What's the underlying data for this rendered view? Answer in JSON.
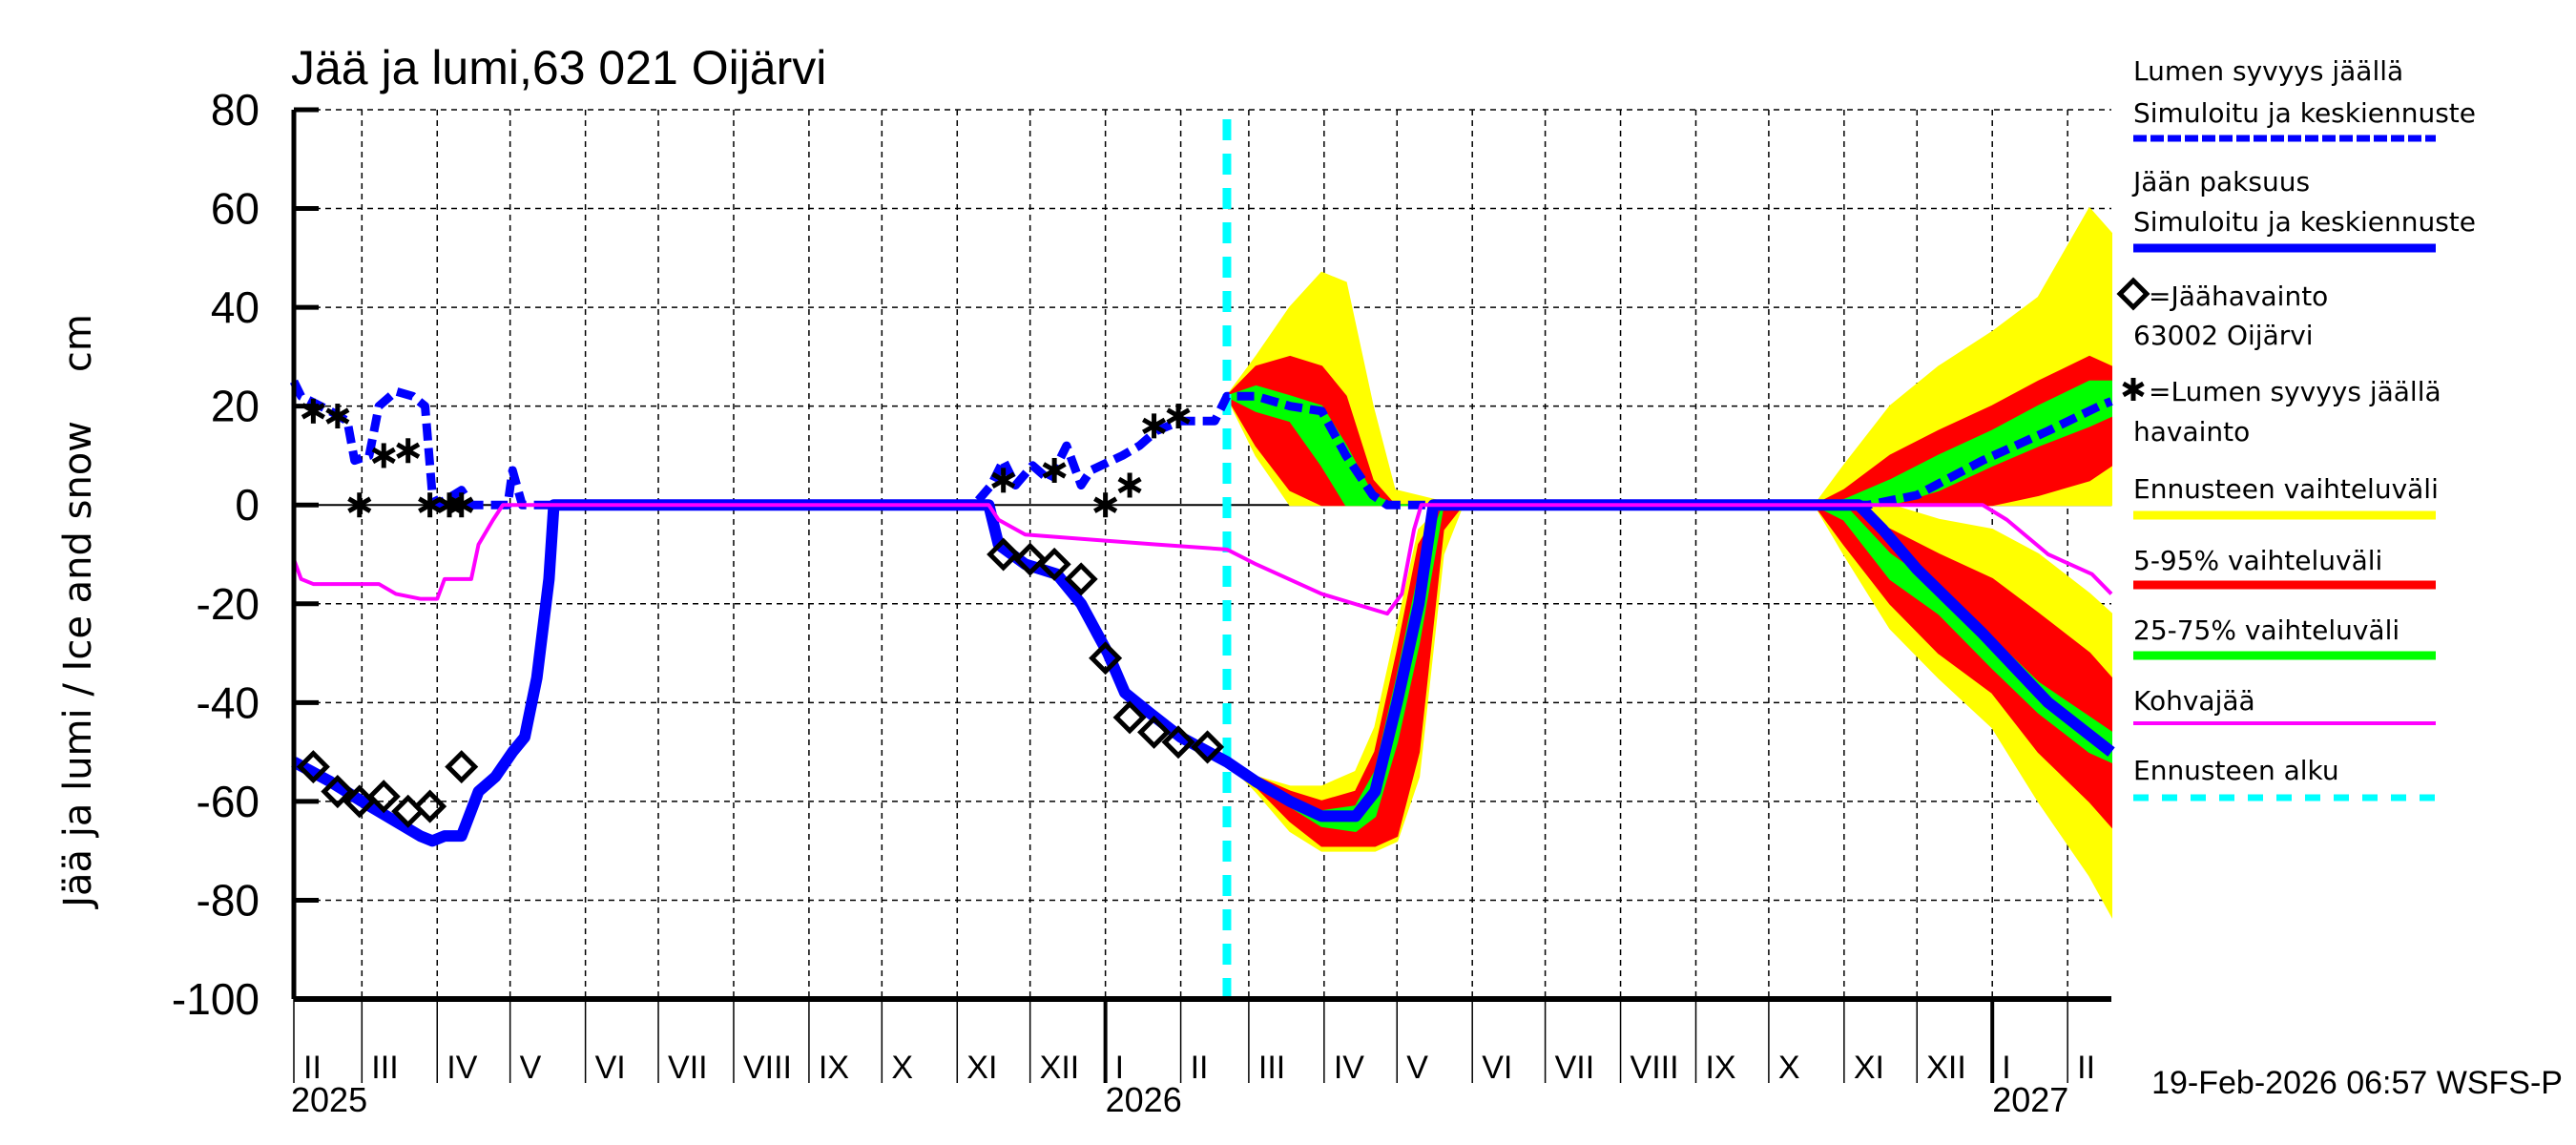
{
  "chart_data": {
    "type": "line",
    "title": "Jää ja lumi,63 021 Oijärvi",
    "ylabel": "Jää ja lumi / Ice and snow    cm",
    "xlabel": "",
    "ylim": [
      -100,
      80
    ],
    "yticks": [
      80,
      60,
      40,
      20,
      0,
      -20,
      -40,
      -60,
      -80,
      -100
    ],
    "xlim": [
      "2025-02-01",
      "2027-02-19"
    ],
    "grid": true,
    "legend_placement": "right",
    "month_ticks": [
      "2025-02-01",
      "2025-03-01",
      "2025-04-01",
      "2025-05-01",
      "2025-06-01",
      "2025-07-01",
      "2025-08-01",
      "2025-09-01",
      "2025-10-01",
      "2025-11-01",
      "2025-12-01",
      "2026-01-01",
      "2026-02-01",
      "2026-03-01",
      "2026-04-01",
      "2026-05-01",
      "2026-06-01",
      "2026-07-01",
      "2026-08-01",
      "2026-09-01",
      "2026-10-01",
      "2026-11-01",
      "2026-12-01",
      "2027-01-01",
      "2027-02-01"
    ],
    "month_labels": [
      "II",
      "III",
      "IV",
      "V",
      "VI",
      "VII",
      "VIII",
      "IX",
      "X",
      "XI",
      "XII",
      "I",
      "II",
      "III",
      "IV",
      "V",
      "VI",
      "VII",
      "VIII",
      "IX",
      "X",
      "XI",
      "XII",
      "I",
      "II"
    ],
    "year_labels": [
      {
        "date": "2025-02-01",
        "label": "2025"
      },
      {
        "date": "2026-01-01",
        "label": "2026"
      },
      {
        "date": "2027-01-01",
        "label": "2027"
      }
    ],
    "forecast_start": "2026-02-20",
    "colors": {
      "snow": "#0000ff",
      "ice": "#0000ff",
      "full_range": "#ffff00",
      "p5_95": "#ff0000",
      "p25_75": "#00ff00",
      "kohvajaa": "#ff00ff",
      "forecast_start": "#00ffff"
    },
    "series": [
      {
        "key": "snow_sim",
        "name": "Lumen syvyys jäällä Simuloitu ja keskiennuste",
        "style": "dashed",
        "points": [
          [
            "2025-02-01",
            25
          ],
          [
            "2025-02-04",
            22
          ],
          [
            "2025-02-16",
            19
          ],
          [
            "2025-02-23",
            17
          ],
          [
            "2025-02-26",
            9
          ],
          [
            "2025-03-04",
            10
          ],
          [
            "2025-03-08",
            20
          ],
          [
            "2025-03-15",
            23
          ],
          [
            "2025-03-22",
            22
          ],
          [
            "2025-03-27",
            20
          ],
          [
            "2025-03-30",
            2
          ],
          [
            "2025-04-01",
            0
          ],
          [
            "2025-04-11",
            3
          ],
          [
            "2025-04-15",
            0
          ],
          [
            "2025-04-30",
            0
          ],
          [
            "2025-05-02",
            7
          ],
          [
            "2025-05-06",
            0
          ],
          [
            "2025-11-08",
            0
          ],
          [
            "2025-11-15",
            4
          ],
          [
            "2025-11-20",
            9
          ],
          [
            "2025-11-25",
            4
          ],
          [
            "2025-12-02",
            8
          ],
          [
            "2025-12-09",
            5
          ],
          [
            "2025-12-16",
            12
          ],
          [
            "2025-12-22",
            4
          ],
          [
            "2025-12-26",
            7
          ],
          [
            "2026-01-08",
            10
          ],
          [
            "2026-01-15",
            12
          ],
          [
            "2026-01-22",
            15
          ],
          [
            "2026-02-01",
            17
          ],
          [
            "2026-02-15",
            17
          ],
          [
            "2026-02-20",
            22
          ],
          [
            "2026-03-04",
            22
          ],
          [
            "2026-03-18",
            20
          ],
          [
            "2026-03-31",
            19
          ],
          [
            "2026-04-10",
            10
          ],
          [
            "2026-04-21",
            2
          ],
          [
            "2026-04-27",
            0
          ],
          [
            "2026-11-11",
            0
          ],
          [
            "2026-12-01",
            2
          ],
          [
            "2026-12-28",
            9
          ],
          [
            "2027-01-24",
            15
          ],
          [
            "2027-02-14",
            20
          ],
          [
            "2027-02-19",
            21
          ]
        ]
      },
      {
        "key": "ice_sim",
        "name": "Jään paksuus Simuloitu ja keskiennuste",
        "style": "solid",
        "points": [
          [
            "2025-02-01",
            -52
          ],
          [
            "2025-02-16",
            -56
          ],
          [
            "2025-03-01",
            -60
          ],
          [
            "2025-03-25",
            -67
          ],
          [
            "2025-03-30",
            -68
          ],
          [
            "2025-04-04",
            -67
          ],
          [
            "2025-04-11",
            -67
          ],
          [
            "2025-04-18",
            -58
          ],
          [
            "2025-04-25",
            -55
          ],
          [
            "2025-05-02",
            -50
          ],
          [
            "2025-05-07",
            -47
          ],
          [
            "2025-05-12",
            -35
          ],
          [
            "2025-05-17",
            -15
          ],
          [
            "2025-05-19",
            0
          ],
          [
            "2025-11-14",
            0
          ],
          [
            "2025-11-18",
            -8
          ],
          [
            "2025-11-29",
            -12
          ],
          [
            "2025-12-12",
            -14
          ],
          [
            "2025-12-22",
            -20
          ],
          [
            "2026-01-02",
            -30
          ],
          [
            "2026-01-09",
            -38
          ],
          [
            "2026-01-19",
            -42
          ],
          [
            "2026-02-01",
            -47
          ],
          [
            "2026-02-20",
            -52
          ],
          [
            "2026-03-04",
            -56
          ],
          [
            "2026-03-18",
            -60
          ],
          [
            "2026-03-31",
            -63
          ],
          [
            "2026-04-14",
            -63
          ],
          [
            "2026-04-22",
            -58
          ],
          [
            "2026-05-01",
            -40
          ],
          [
            "2026-05-10",
            -20
          ],
          [
            "2026-05-16",
            0
          ],
          [
            "2026-11-07",
            0
          ],
          [
            "2026-11-17",
            -5
          ],
          [
            "2026-12-01",
            -13
          ],
          [
            "2026-12-28",
            -26
          ],
          [
            "2027-01-24",
            -40
          ],
          [
            "2027-02-19",
            -50
          ]
        ]
      },
      {
        "key": "kohva",
        "name": "Kohvajää",
        "style": "thin",
        "points": [
          [
            "2025-02-01",
            -11
          ],
          [
            "2025-02-04",
            -15
          ],
          [
            "2025-02-09",
            -16
          ],
          [
            "2025-03-08",
            -16
          ],
          [
            "2025-03-15",
            -18
          ],
          [
            "2025-03-25",
            -19
          ],
          [
            "2025-04-01",
            -19
          ],
          [
            "2025-04-04",
            -15
          ],
          [
            "2025-04-15",
            -15
          ],
          [
            "2025-04-18",
            -8
          ],
          [
            "2025-04-24",
            -3
          ],
          [
            "2025-04-28",
            0
          ],
          [
            "2025-11-14",
            0
          ],
          [
            "2025-11-18",
            -3
          ],
          [
            "2025-11-29",
            -6
          ],
          [
            "2025-12-26",
            -7
          ],
          [
            "2026-01-22",
            -8
          ],
          [
            "2026-02-20",
            -9
          ],
          [
            "2026-03-04",
            -12
          ],
          [
            "2026-03-31",
            -18
          ],
          [
            "2026-04-27",
            -22
          ],
          [
            "2026-05-03",
            -18
          ],
          [
            "2026-05-08",
            -5
          ],
          [
            "2026-05-11",
            0
          ],
          [
            "2026-12-28",
            0
          ],
          [
            "2027-01-07",
            -3
          ],
          [
            "2027-01-24",
            -10
          ],
          [
            "2027-02-11",
            -14
          ],
          [
            "2027-02-19",
            -18
          ]
        ]
      }
    ],
    "bands": [
      {
        "group": "snow_spring",
        "dates": [
          "2026-02-20",
          "2026-03-04",
          "2026-03-18",
          "2026-03-31",
          "2026-04-10",
          "2026-04-21",
          "2026-04-30",
          "2026-05-25"
        ],
        "full": {
          "lo": [
            22,
            10,
            0,
            0,
            0,
            0,
            0,
            0
          ],
          "hi": [
            22,
            30,
            40,
            47,
            45,
            20,
            3,
            0
          ]
        },
        "p5_95": {
          "lo": [
            22,
            12,
            3,
            0,
            0,
            0,
            0,
            0
          ],
          "hi": [
            22,
            28,
            30,
            28,
            22,
            5,
            0,
            0
          ]
        },
        "p25_75": {
          "lo": [
            22,
            19,
            17,
            8,
            0,
            0,
            0,
            0
          ],
          "hi": [
            22,
            24,
            22,
            20,
            12,
            2,
            0,
            0
          ]
        }
      },
      {
        "group": "ice_spring",
        "dates": [
          "2026-02-20",
          "2026-03-04",
          "2026-03-18",
          "2026-03-31",
          "2026-04-14",
          "2026-04-22",
          "2026-05-01",
          "2026-05-10",
          "2026-05-20",
          "2026-05-28"
        ],
        "full": {
          "lo": [
            -52,
            -58,
            -66,
            -70,
            -70,
            -70,
            -68,
            -55,
            -10,
            0
          ],
          "hi": [
            -52,
            -55,
            -57,
            -57,
            -54,
            -45,
            -25,
            -5,
            0,
            0
          ]
        },
        "p5_95": {
          "lo": [
            -52,
            -57,
            -64,
            -69,
            -69,
            -69,
            -67,
            -50,
            -5,
            0
          ],
          "hi": [
            -52,
            -55,
            -58,
            -60,
            -58,
            -50,
            -30,
            -8,
            0,
            0
          ]
        },
        "p25_75": {
          "lo": [
            -52,
            -56,
            -61,
            -65,
            -66,
            -63,
            -48,
            -28,
            0,
            0
          ],
          "hi": [
            -52,
            -55,
            -59,
            -62,
            -61,
            -54,
            -35,
            -14,
            0,
            0
          ]
        }
      },
      {
        "group": "snow_autumn",
        "dates": [
          "2026-10-20",
          "2026-11-01",
          "2026-11-20",
          "2026-12-10",
          "2027-01-01",
          "2027-01-20",
          "2027-02-10",
          "2027-02-19"
        ],
        "full": {
          "lo": [
            0,
            0,
            0,
            0,
            0,
            0,
            0,
            0
          ],
          "hi": [
            0,
            8,
            20,
            28,
            35,
            42,
            60,
            55
          ]
        },
        "p5_95": {
          "lo": [
            0,
            0,
            0,
            0,
            0,
            2,
            5,
            8
          ],
          "hi": [
            0,
            3,
            10,
            15,
            20,
            25,
            30,
            28
          ]
        },
        "p25_75": {
          "lo": [
            0,
            0,
            0,
            3,
            8,
            12,
            16,
            18
          ],
          "hi": [
            0,
            1,
            5,
            10,
            15,
            20,
            25,
            25
          ]
        }
      },
      {
        "group": "ice_autumn",
        "dates": [
          "2026-10-20",
          "2026-11-01",
          "2026-11-20",
          "2026-12-10",
          "2027-01-01",
          "2027-01-20",
          "2027-02-10",
          "2027-02-19"
        ],
        "full": {
          "lo": [
            0,
            -10,
            -25,
            -35,
            -45,
            -60,
            -75,
            -83
          ],
          "hi": [
            0,
            0,
            0,
            -3,
            -5,
            -10,
            -18,
            -22
          ]
        },
        "p5_95": {
          "lo": [
            0,
            -8,
            -20,
            -30,
            -38,
            -50,
            -60,
            -65
          ],
          "hi": [
            0,
            0,
            -5,
            -10,
            -15,
            -22,
            -30,
            -35
          ]
        },
        "p25_75": {
          "lo": [
            0,
            -3,
            -15,
            -22,
            -33,
            -42,
            -50,
            -52
          ],
          "hi": [
            0,
            0,
            -10,
            -17,
            -27,
            -36,
            -43,
            -46
          ]
        }
      }
    ],
    "ice_observations": [
      [
        "2025-02-09",
        -53
      ],
      [
        "2025-02-19",
        -58
      ],
      [
        "2025-02-28",
        -60
      ],
      [
        "2025-03-10",
        -59
      ],
      [
        "2025-03-20",
        -62
      ],
      [
        "2025-03-29",
        -61
      ],
      [
        "2025-04-11",
        -53
      ],
      [
        "2025-11-20",
        -10
      ],
      [
        "2025-12-01",
        -11
      ],
      [
        "2025-12-11",
        -12
      ],
      [
        "2025-12-22",
        -15
      ],
      [
        "2026-01-01",
        -31
      ],
      [
        "2026-01-11",
        -43
      ],
      [
        "2026-01-21",
        -46
      ],
      [
        "2026-01-31",
        -48
      ],
      [
        "2026-02-12",
        -49
      ]
    ],
    "snow_observations": [
      [
        "2025-02-09",
        19
      ],
      [
        "2025-02-19",
        18
      ],
      [
        "2025-02-28",
        0
      ],
      [
        "2025-03-10",
        10
      ],
      [
        "2025-03-20",
        11
      ],
      [
        "2025-03-29",
        0
      ],
      [
        "2025-04-06",
        0
      ],
      [
        "2025-04-11",
        0
      ],
      [
        "2025-11-20",
        5
      ],
      [
        "2025-12-11",
        7
      ],
      [
        "2026-01-01",
        0
      ],
      [
        "2026-01-11",
        4
      ],
      [
        "2026-01-21",
        16
      ],
      [
        "2026-01-31",
        18
      ]
    ]
  },
  "legend": {
    "snow_title": "Lumen syvyys jäällä",
    "snow_sub": "Simuloitu ja keskiennuste",
    "ice_title": "Jään paksuus",
    "ice_sub": "Simuloitu ja keskiennuste",
    "ice_obs": "=Jäähavainto",
    "ice_obs_station": "63002 Oijärvi",
    "snow_obs": "=Lumen syvyys jäällä",
    "snow_obs_sub": "havainto",
    "full_range": "Ennusteen vaihteluväli",
    "p5_95": "5-95% vaihteluväli",
    "p25_75": "25-75% vaihteluväli",
    "kohva": "Kohvajää",
    "forecast_start": "Ennusteen alku"
  },
  "timestamp": "19-Feb-2026 06:57 WSFS-P"
}
